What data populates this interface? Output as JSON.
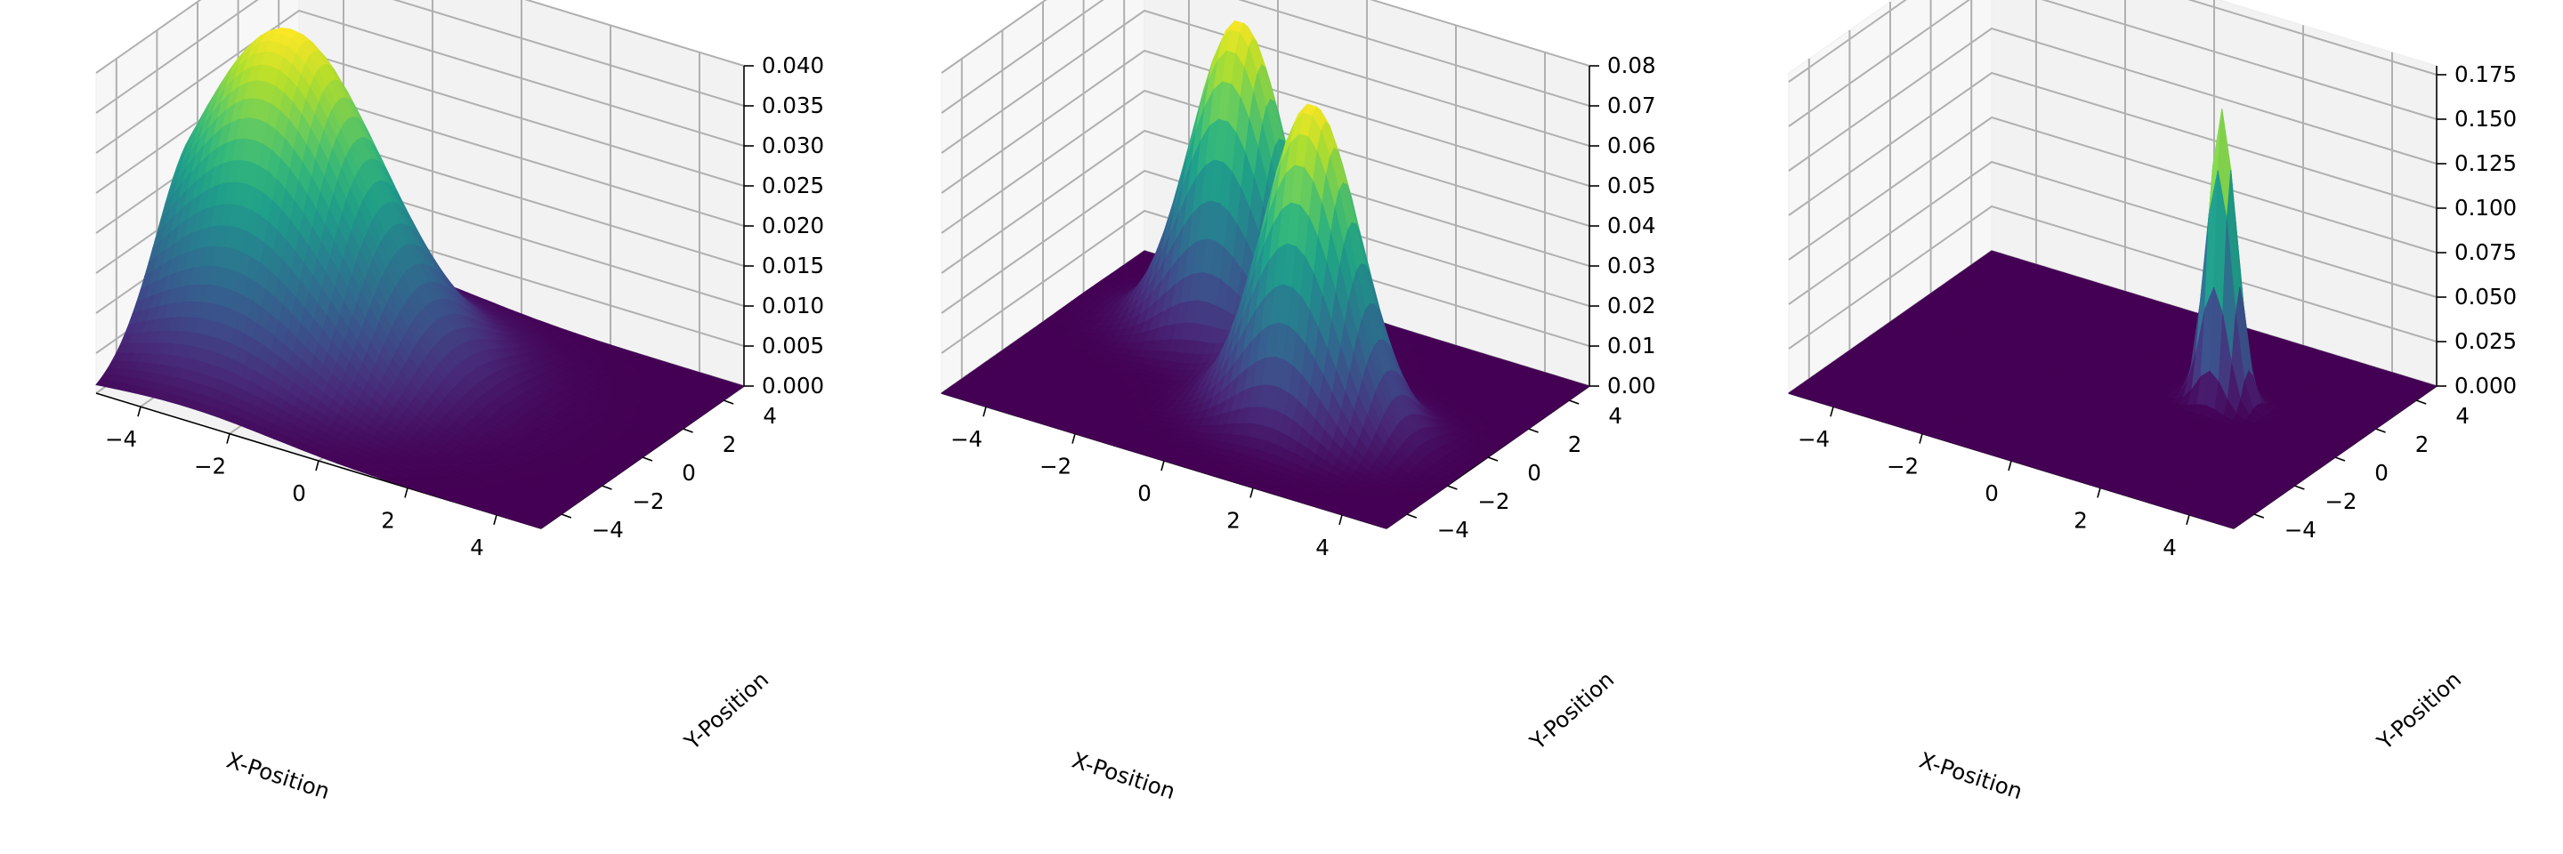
{
  "chart_data": [
    {
      "type": "surface",
      "colormap": "viridis",
      "peaks": [
        {
          "x": -3,
          "y": 0,
          "sigma": 2.0,
          "height": 0.0398
        }
      ],
      "xlim": [
        -5,
        5
      ],
      "ylim": [
        -5,
        5
      ],
      "zlim": [
        0,
        0.04
      ],
      "xticks": [
        -4,
        -2,
        0,
        2,
        4
      ],
      "xtick_labels": [
        "−4",
        "−2",
        "0",
        "2",
        "4"
      ],
      "yticks": [
        -4,
        -2,
        0,
        2,
        4
      ],
      "ytick_labels": [
        "−4",
        "−2",
        "0",
        "2",
        "4"
      ],
      "zticks": [
        0,
        0.005,
        0.01,
        0.015,
        0.02,
        0.025,
        0.03,
        0.035,
        0.04
      ],
      "ztick_labels": [
        "0.000",
        "0.005",
        "0.010",
        "0.015",
        "0.020",
        "0.025",
        "0.030",
        "0.035",
        "0.040"
      ],
      "xlabel": "X-Position",
      "ylabel": "Y-Position",
      "grid": true
    },
    {
      "type": "surface",
      "colormap": "viridis",
      "peaks": [
        {
          "x": -1.5,
          "y": 2,
          "sigma": 1.0,
          "height": 0.08
        },
        {
          "x": 1.5,
          "y": -1,
          "sigma": 1.0,
          "height": 0.08
        }
      ],
      "xlim": [
        -5,
        5
      ],
      "ylim": [
        -5,
        5
      ],
      "zlim": [
        0,
        0.08
      ],
      "xticks": [
        -4,
        -2,
        0,
        2,
        4
      ],
      "xtick_labels": [
        "−4",
        "−2",
        "0",
        "2",
        "4"
      ],
      "yticks": [
        -4,
        -2,
        0,
        2,
        4
      ],
      "ytick_labels": [
        "−4",
        "−2",
        "0",
        "2",
        "4"
      ],
      "zticks": [
        0,
        0.01,
        0.02,
        0.03,
        0.04,
        0.05,
        0.06,
        0.07,
        0.08
      ],
      "ztick_labels": [
        "0.00",
        "0.01",
        "0.02",
        "0.03",
        "0.04",
        "0.05",
        "0.06",
        "0.07",
        "0.08"
      ],
      "xlabel": "X-Position",
      "ylabel": "Y-Position",
      "grid": true
    },
    {
      "type": "surface",
      "colormap": "viridis",
      "peaks": [
        {
          "x": 2,
          "y": 1,
          "sigma": 0.3,
          "height": 0.165
        }
      ],
      "xlim": [
        -5,
        5
      ],
      "ylim": [
        -5,
        5
      ],
      "zlim": [
        0,
        0.18
      ],
      "xticks": [
        -4,
        -2,
        0,
        2,
        4
      ],
      "xtick_labels": [
        "−4",
        "−2",
        "0",
        "2",
        "4"
      ],
      "yticks": [
        -4,
        -2,
        0,
        2,
        4
      ],
      "ytick_labels": [
        "−4",
        "−2",
        "0",
        "2",
        "4"
      ],
      "zticks": [
        0,
        0.025,
        0.05,
        0.075,
        0.1,
        0.125,
        0.15,
        0.175
      ],
      "ztick_labels": [
        "0.000",
        "0.025",
        "0.050",
        "0.075",
        "0.100",
        "0.125",
        "0.150",
        "0.175"
      ],
      "xlabel": "X-Position",
      "ylabel": "Y-Position",
      "grid": true
    }
  ]
}
